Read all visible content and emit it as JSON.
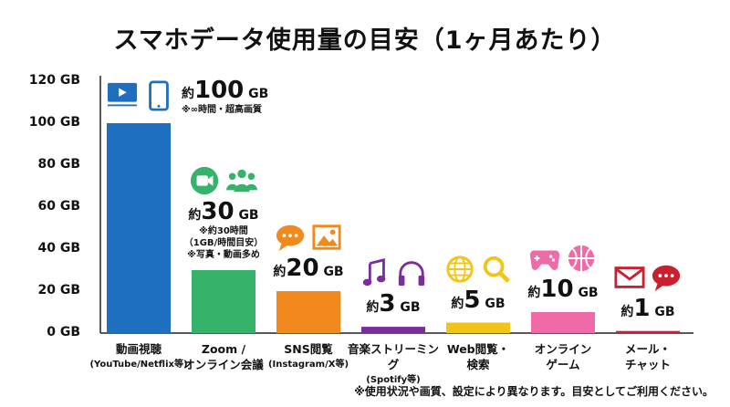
{
  "title": "スマホデータ使用量の目安（1ヶ月あたり）",
  "footnote": "※使用状況や画質、設定により異なります。目安としてご利用ください。",
  "chart_data": {
    "type": "bar",
    "ylim": [
      0,
      120
    ],
    "yticks": [
      0,
      20,
      40,
      60,
      80,
      100,
      120
    ],
    "ytick_labels": [
      "0 GB",
      "20 GB",
      "40 GB",
      "60 GB",
      "80 GB",
      "100 GB",
      "120 GB"
    ],
    "grid": false,
    "categories": [
      {
        "label": "動画視聴",
        "sub": "(YouTube/Netflix等)"
      },
      {
        "label": "Zoom /",
        "sub": "オンライン会議",
        "sub_bold": true
      },
      {
        "label": "SNS閲覧",
        "sub": "(Instagram/X等)"
      },
      {
        "label": "音楽ストリーミング",
        "sub": "(Spotify等)"
      },
      {
        "label": "Web閲覧・",
        "sub": "検索",
        "sub_bold": true
      },
      {
        "label": "オンライン",
        "sub": "ゲーム",
        "sub_bold": true
      },
      {
        "label": "メール・",
        "sub": "チャット",
        "sub_bold": true
      }
    ],
    "values": [
      100,
      30,
      20,
      3,
      5,
      10,
      1
    ],
    "value_labels": [
      {
        "prefix": "約",
        "num": "100",
        "unit": "GB",
        "notes": [
          "※∞時間・超高画質"
        ],
        "icons": [
          "video-player-icon",
          "smartphone-icon"
        ]
      },
      {
        "prefix": "約",
        "num": "30",
        "unit": "GB",
        "notes": [
          "※約30時間",
          "（1GB/時間目安）",
          "※写真・動画多め"
        ],
        "icons": [
          "video-camera-icon",
          "people-icon"
        ]
      },
      {
        "prefix": "約",
        "num": "20",
        "unit": "GB",
        "notes": [],
        "icons": [
          "chat-bubble-icon",
          "image-icon"
        ]
      },
      {
        "prefix": "約",
        "num": "3",
        "unit": "GB",
        "notes": [],
        "icons": [
          "music-note-icon",
          "headphones-icon"
        ]
      },
      {
        "prefix": "約",
        "num": "5",
        "unit": "GB",
        "notes": [],
        "icons": [
          "globe-icon",
          "magnifier-icon"
        ]
      },
      {
        "prefix": "約",
        "num": "10",
        "unit": "GB",
        "notes": [],
        "icons": [
          "gamepad-icon",
          "basketball-icon"
        ]
      },
      {
        "prefix": "約",
        "num": "1",
        "unit": "GB",
        "notes": [],
        "icons": [
          "mail-icon",
          "chat-bubble-icon"
        ]
      }
    ],
    "colors": [
      "#1f6fc0",
      "#36b36b",
      "#f08a1e",
      "#7b2d9e",
      "#f2c418",
      "#f06aa8",
      "#c8202e"
    ]
  }
}
